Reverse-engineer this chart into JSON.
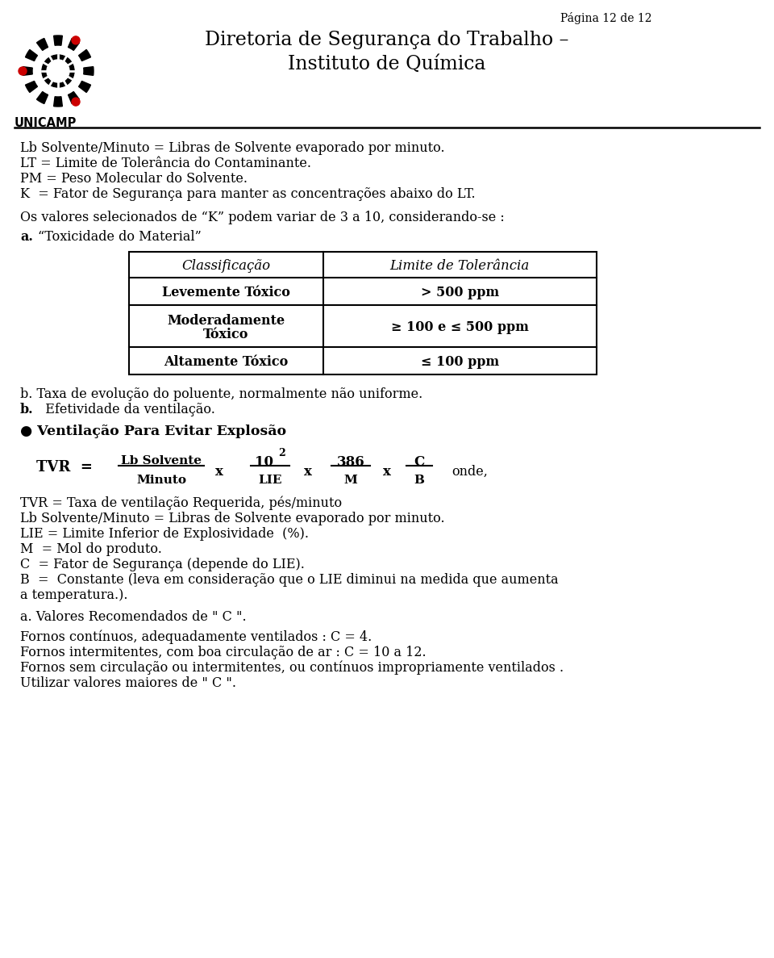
{
  "page_label": "Página 12 de 12",
  "header_title1": "Diretoria de Segurança do Trabalho –",
  "header_title2": "Instituto de Química",
  "header_unicamp": "UNICAMP",
  "body_lines": [
    "Lb Solvente/Minuto = Libras de Solvente evaporado por minuto.",
    "LT = Limite de Tolerância do Contaminante.",
    "PM = Peso Molecular do Solvente.",
    "K  = Fator de Segurança para manter as concentrações abaixo do LT."
  ],
  "k_values_line": "Os valores selecionados de “K” podem variar de 3 a 10, considerando-se :",
  "a_label": "a.",
  "a_text": "“Toxicidade do Material”",
  "table_headers": [
    "Classificação",
    "Limite de Tolerância"
  ],
  "table_rows": [
    [
      "Levemente Tóxico",
      "> 500 ppm"
    ],
    [
      "Moderadamente\nTóxico",
      "≥ 100 e ≤ 500 ppm"
    ],
    [
      "Altamente Tóxico",
      "≤ 100 ppm"
    ]
  ],
  "b_line1": "b. Taxa de evolução do poluente, normalmente não uniforme.",
  "b_label2": "b.",
  "b_text2": "  Efetividade da ventilação.",
  "bullet_section": "● Ventilação Para Evitar Explosão",
  "def_lines": [
    "TVR = Taxa de ventilação Requerida, pés/minuto",
    "Lb Solvente/Minuto = Libras de Solvente evaporado por minuto.",
    "LIE = Limite Inferior de Explosividade  (%).",
    "M  = Mol do produto.",
    "C  = Fator de Segurança (depende do LIE).",
    "B  =  Constante (leva em consideração que o LIE diminui na medida que aumenta",
    "a temperatura.)."
  ],
  "a_values_label": "a. Valores Recomendados de \" C \".",
  "fornos_lines": [
    "Fornos contínuos, adequadamente ventilados : C = 4.",
    "Fornos intermitentes, com boa circulação de ar : C = 10 a 12.",
    "Fornos sem circulação ou intermitentes, ou contínuos impropriamente ventilados .",
    "Utilizar valores maiores de \" C \"."
  ],
  "bg_color": "#ffffff",
  "text_color": "#000000"
}
